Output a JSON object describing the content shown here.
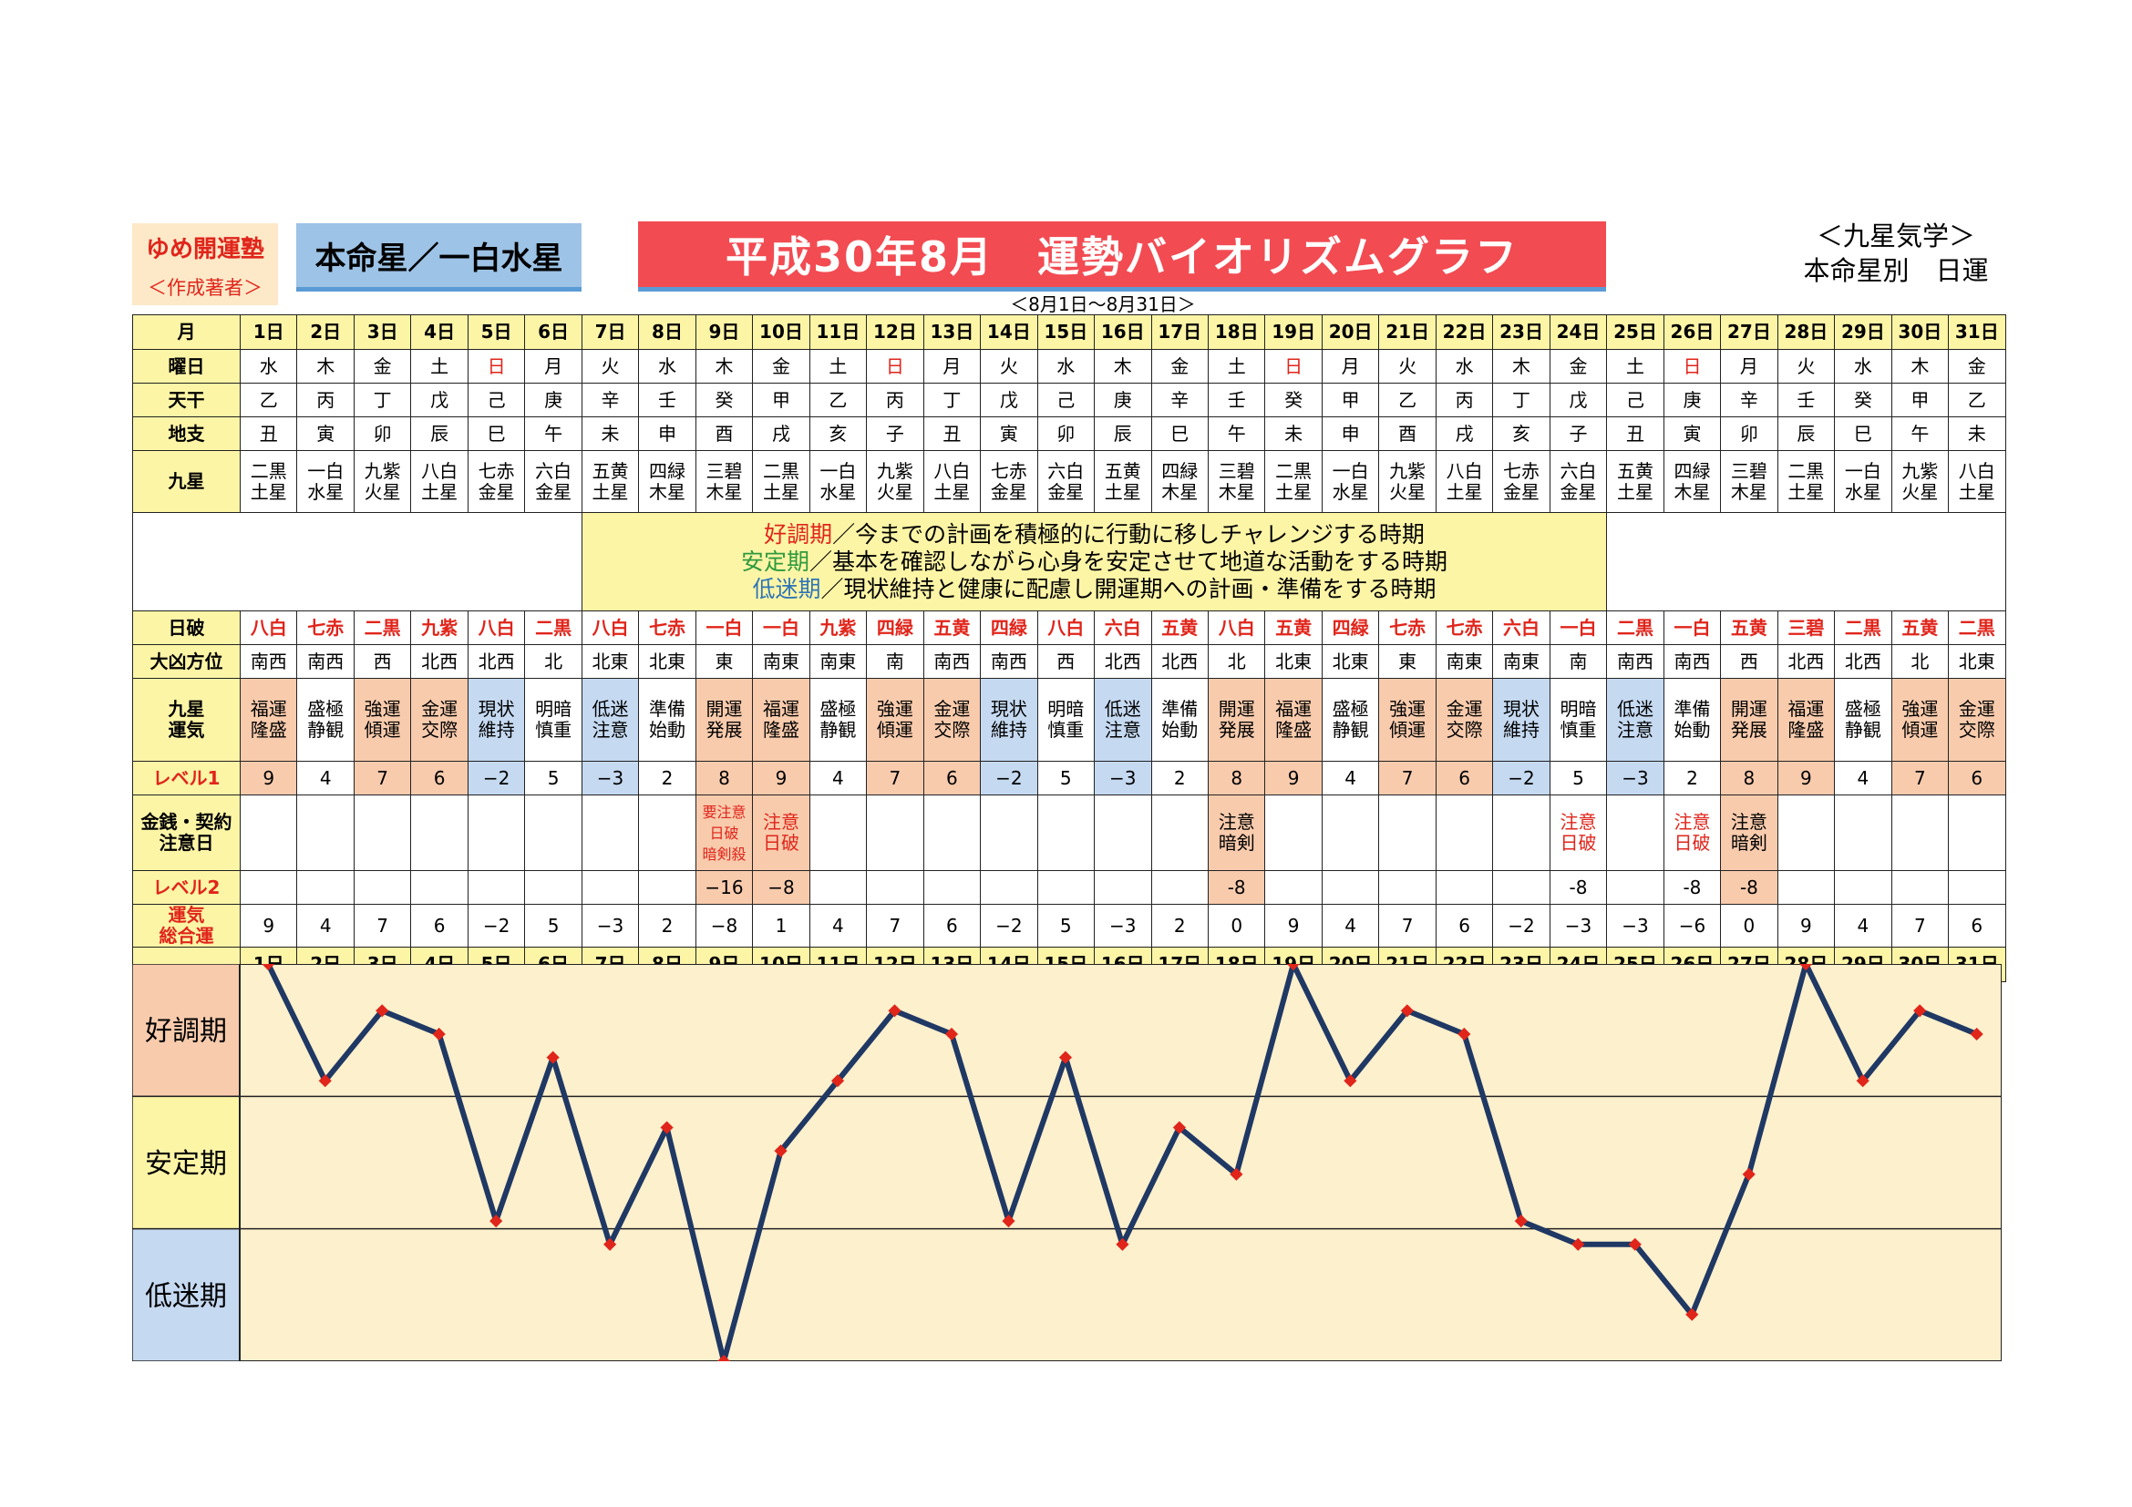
{
  "header": {
    "brand": "ゆめ開運塾",
    "author": "＜作成著者＞",
    "honmei": "本命星／一白水星",
    "title": "平成30年8月　運勢バイオリズムグラフ",
    "range": "＜8月1日～8月31日＞",
    "school_line1": "＜九星気学＞",
    "school_line2": "本命星別　日運"
  },
  "labels": {
    "month": "月",
    "weekday": "曜日",
    "tenkan": "天干",
    "chishi": "地支",
    "kyusei": "九星",
    "nippa": "日破",
    "daikyo": "大凶方位",
    "kiun_1": "九星",
    "kiun_2": "運気",
    "level1": "レベル1",
    "kinsen_1": "金銭・契約",
    "kinsen_2": "注意日",
    "level2": "レベル2",
    "total_1": "運気",
    "total_2": "総合運",
    "period_good": "好調期",
    "period_stable": "安定期",
    "period_low": "低迷期"
  },
  "legend": {
    "good_key": "好調期",
    "good_text": "／今までの計画を積極的に行動に移しチャレンジする時期",
    "stable_key": "安定期",
    "stable_text": "／基本を確認しながら心身を安定させて地道な活動をする時期",
    "low_key": "低迷期",
    "low_text": "／現状維持と健康に配慮し開運期への計画・準備をする時期"
  },
  "colors": {
    "label_bg": "#fdf5a6",
    "good_bg": "#f8cbad",
    "bad_bg": "#c5d9f1",
    "red": "#e0251b",
    "line": "#1f3864",
    "marker": "#e0251b",
    "chart_bg": "#fdf0cc"
  },
  "days": [
    "1日",
    "2日",
    "3日",
    "4日",
    "5日",
    "6日",
    "7日",
    "8日",
    "9日",
    "10日",
    "11日",
    "12日",
    "13日",
    "14日",
    "15日",
    "16日",
    "17日",
    "18日",
    "19日",
    "20日",
    "21日",
    "22日",
    "23日",
    "24日",
    "25日",
    "26日",
    "27日",
    "28日",
    "29日",
    "30日",
    "31日"
  ],
  "weekdays": [
    "水",
    "木",
    "金",
    "土",
    "日",
    "月",
    "火",
    "水",
    "木",
    "金",
    "土",
    "日",
    "月",
    "火",
    "水",
    "木",
    "金",
    "土",
    "日",
    "月",
    "火",
    "水",
    "木",
    "金",
    "土",
    "日",
    "月",
    "火",
    "水",
    "木",
    "金"
  ],
  "tenkan": [
    "乙",
    "丙",
    "丁",
    "戊",
    "己",
    "庚",
    "辛",
    "壬",
    "癸",
    "甲",
    "乙",
    "丙",
    "丁",
    "戊",
    "己",
    "庚",
    "辛",
    "壬",
    "癸",
    "甲",
    "乙",
    "丙",
    "丁",
    "戊",
    "己",
    "庚",
    "辛",
    "壬",
    "癸",
    "甲",
    "乙"
  ],
  "chishi": [
    "丑",
    "寅",
    "卯",
    "辰",
    "巳",
    "午",
    "未",
    "申",
    "酉",
    "戌",
    "亥",
    "子",
    "丑",
    "寅",
    "卯",
    "辰",
    "巳",
    "午",
    "未",
    "申",
    "酉",
    "戌",
    "亥",
    "子",
    "丑",
    "寅",
    "卯",
    "辰",
    "巳",
    "午",
    "未"
  ],
  "kyusei_top": [
    "二黒",
    "一白",
    "九紫",
    "八白",
    "七赤",
    "六白",
    "五黄",
    "四緑",
    "三碧",
    "二黒",
    "一白",
    "九紫",
    "八白",
    "七赤",
    "六白",
    "五黄",
    "四緑",
    "三碧",
    "二黒",
    "一白",
    "九紫",
    "八白",
    "七赤",
    "六白",
    "五黄",
    "四緑",
    "三碧",
    "二黒",
    "一白",
    "九紫",
    "八白"
  ],
  "kyusei_bottom": [
    "土星",
    "水星",
    "火星",
    "土星",
    "金星",
    "金星",
    "土星",
    "木星",
    "木星",
    "土星",
    "水星",
    "火星",
    "土星",
    "金星",
    "金星",
    "土星",
    "木星",
    "木星",
    "土星",
    "水星",
    "火星",
    "土星",
    "金星",
    "金星",
    "土星",
    "木星",
    "木星",
    "土星",
    "水星",
    "火星",
    "土星"
  ],
  "nippa": [
    "八白",
    "七赤",
    "二黒",
    "九紫",
    "八白",
    "二黒",
    "八白",
    "七赤",
    "一白",
    "一白",
    "九紫",
    "四緑",
    "五黄",
    "四緑",
    "八白",
    "六白",
    "五黄",
    "八白",
    "五黄",
    "四緑",
    "七赤",
    "七赤",
    "六白",
    "一白",
    "二黒",
    "一白",
    "五黄",
    "三碧",
    "二黒",
    "五黄",
    "二黒"
  ],
  "daikyo": [
    "南西",
    "南西",
    "西",
    "北西",
    "北西",
    "北",
    "北東",
    "北東",
    "東",
    "南東",
    "南東",
    "南",
    "南西",
    "南西",
    "西",
    "北西",
    "北西",
    "北",
    "北東",
    "北東",
    "東",
    "南東",
    "南東",
    "南",
    "南西",
    "南西",
    "西",
    "北西",
    "北西",
    "北",
    "北東"
  ],
  "kiun_top": [
    "福運",
    "盛極",
    "強運",
    "金運",
    "現状",
    "明暗",
    "低迷",
    "準備",
    "開運",
    "福運",
    "盛極",
    "強運",
    "金運",
    "現状",
    "明暗",
    "低迷",
    "準備",
    "開運",
    "福運",
    "盛極",
    "強運",
    "金運",
    "現状",
    "明暗",
    "低迷",
    "準備",
    "開運",
    "福運",
    "盛極",
    "強運",
    "金運"
  ],
  "kiun_bottom": [
    "隆盛",
    "静観",
    "傾運",
    "交際",
    "維持",
    "慎重",
    "注意",
    "始動",
    "発展",
    "隆盛",
    "静観",
    "傾運",
    "交際",
    "維持",
    "慎重",
    "注意",
    "始動",
    "発展",
    "隆盛",
    "静観",
    "傾運",
    "交際",
    "維持",
    "慎重",
    "注意",
    "始動",
    "発展",
    "隆盛",
    "静観",
    "傾運",
    "交際"
  ],
  "level1": [
    "9",
    "4",
    "7",
    "6",
    "−2",
    "5",
    "−3",
    "2",
    "8",
    "9",
    "4",
    "7",
    "6",
    "−2",
    "5",
    "−3",
    "2",
    "8",
    "9",
    "4",
    "7",
    "6",
    "−2",
    "5",
    "−3",
    "2",
    "8",
    "9",
    "4",
    "7",
    "6"
  ],
  "kinsen_line1": [
    "",
    "",
    "",
    "",
    "",
    "",
    "",
    "",
    "要注意",
    "注意",
    "",
    "",
    "",
    "",
    "",
    "",
    "",
    "注意",
    "",
    "",
    "",
    "",
    "",
    "注意",
    "",
    "注意",
    "注意",
    "",
    "",
    "",
    ""
  ],
  "kinsen_line2": [
    "",
    "",
    "",
    "",
    "",
    "",
    "",
    "",
    "日破",
    "日破",
    "",
    "",
    "",
    "",
    "",
    "",
    "",
    "暗剣",
    "",
    "",
    "",
    "",
    "",
    "日破",
    "",
    "日破",
    "暗剣",
    "",
    "",
    "",
    ""
  ],
  "kinsen_line3": [
    "",
    "",
    "",
    "",
    "",
    "",
    "",
    "",
    "暗剣殺",
    "",
    "",
    "",
    "",
    "",
    "",
    "",
    "",
    "",
    "",
    "",
    "",
    "",
    "",
    "",
    "",
    "",
    "",
    "",
    "",
    "",
    ""
  ],
  "level2": [
    "",
    "",
    "",
    "",
    "",
    "",
    "",
    "",
    "−16",
    "−8",
    "",
    "",
    "",
    "",
    "",
    "",
    "",
    "-8",
    "",
    "",
    "",
    "",
    "",
    "-8",
    "",
    "-8",
    "-8",
    "",
    "",
    "",
    ""
  ],
  "total": [
    "9",
    "4",
    "7",
    "6",
    "−2",
    "5",
    "−3",
    "2",
    "−8",
    "1",
    "4",
    "7",
    "6",
    "−2",
    "5",
    "−3",
    "2",
    "0",
    "9",
    "4",
    "7",
    "6",
    "−2",
    "−3",
    "−3",
    "−6",
    "0",
    "9",
    "4",
    "7",
    "6"
  ],
  "chart_data": {
    "type": "line",
    "x": [
      1,
      2,
      3,
      4,
      5,
      6,
      7,
      8,
      9,
      10,
      11,
      12,
      13,
      14,
      15,
      16,
      17,
      18,
      19,
      20,
      21,
      22,
      23,
      24,
      25,
      26,
      27,
      28,
      29,
      30,
      31
    ],
    "series": [
      {
        "values": [
          9,
          4,
          7,
          6,
          -2,
          5,
          -3,
          2,
          -8,
          1,
          4,
          7,
          6,
          -2,
          5,
          -3,
          2,
          0,
          9,
          4,
          7,
          6,
          -2,
          -3,
          -3,
          -6,
          0,
          9,
          4,
          7,
          6
        ]
      }
    ],
    "ylim": [
      -8,
      9
    ],
    "bands": [
      "好調期",
      "安定期",
      "低迷期"
    ]
  }
}
